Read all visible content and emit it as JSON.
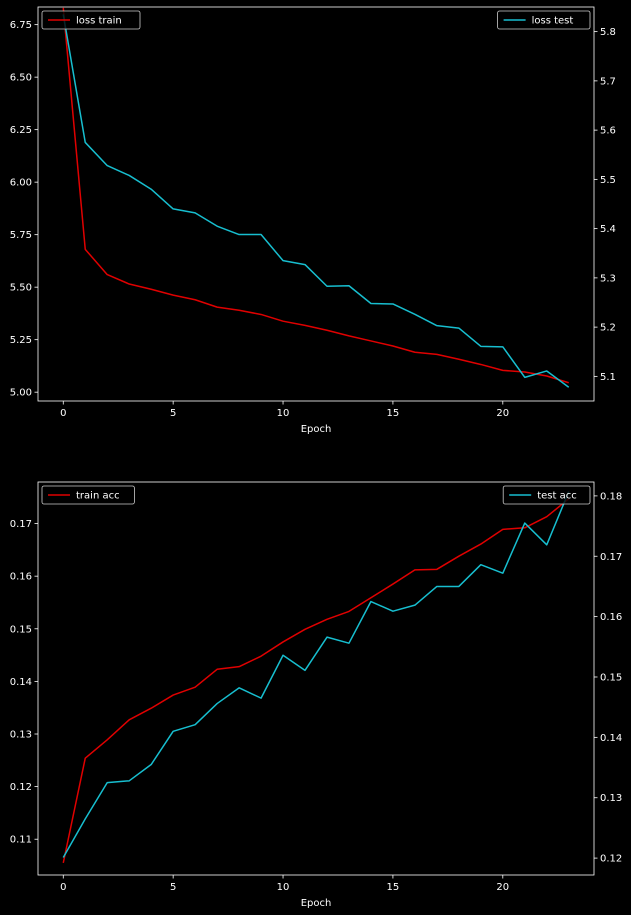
{
  "chart_data": [
    {
      "type": "line",
      "xlabel": "Epoch",
      "x": [
        0,
        1,
        2,
        3,
        4,
        5,
        6,
        7,
        8,
        9,
        10,
        11,
        12,
        13,
        14,
        15,
        16,
        17,
        18,
        19,
        20,
        21,
        22,
        23
      ],
      "xlim": [
        -1.15,
        24.15
      ],
      "xticks": [
        0,
        5,
        10,
        15,
        20
      ],
      "grid": false,
      "left_axis": {
        "ylim": [
          4.958,
          6.834
        ],
        "ticks": [
          5.0,
          5.25,
          5.5,
          5.75,
          6.0,
          6.25,
          6.5,
          6.75
        ],
        "tick_labels": [
          "5.00",
          "5.25",
          "5.50",
          "5.75",
          "6.00",
          "6.25",
          "6.50",
          "6.75"
        ],
        "legend_position": "top-left",
        "series": [
          {
            "name": "loss train",
            "color": "#e00000",
            "values": [
              6.83,
              5.68,
              5.56,
              5.515,
              5.49,
              5.462,
              5.44,
              5.405,
              5.39,
              5.37,
              5.338,
              5.318,
              5.295,
              5.268,
              5.244,
              5.22,
              5.19,
              5.18,
              5.157,
              5.132,
              5.104,
              5.096,
              5.077,
              5.045
            ]
          }
        ]
      },
      "right_axis": {
        "ylim": [
          5.05,
          5.85
        ],
        "ticks": [
          5.1,
          5.2,
          5.3,
          5.4,
          5.5,
          5.6,
          5.7,
          5.8
        ],
        "tick_labels": [
          "5.1",
          "5.2",
          "5.3",
          "5.4",
          "5.5",
          "5.6",
          "5.7",
          "5.8"
        ],
        "legend_position": "top-right",
        "series": [
          {
            "name": "loss test",
            "color": "#17becf",
            "values": [
              5.835,
              5.575,
              5.528,
              5.508,
              5.48,
              5.44,
              5.432,
              5.405,
              5.388,
              5.388,
              5.335,
              5.327,
              5.283,
              5.284,
              5.248,
              5.247,
              5.226,
              5.203,
              5.198,
              5.161,
              5.16,
              5.098,
              5.111,
              5.078
            ]
          }
        ]
      }
    },
    {
      "type": "line",
      "xlabel": "Epoch",
      "x": [
        0,
        1,
        2,
        3,
        4,
        5,
        6,
        7,
        8,
        9,
        10,
        11,
        12,
        13,
        14,
        15,
        16,
        17,
        18,
        19,
        20,
        21,
        22,
        23
      ],
      "xlim": [
        -1.15,
        24.15
      ],
      "xticks": [
        0,
        5,
        10,
        15,
        20
      ],
      "grid": false,
      "left_axis": {
        "ylim": [
          0.1032,
          0.1779
        ],
        "ticks": [
          0.11,
          0.12,
          0.13,
          0.14,
          0.15,
          0.16,
          0.17
        ],
        "tick_labels": [
          "0.11",
          "0.12",
          "0.13",
          "0.14",
          "0.15",
          "0.16",
          "0.17"
        ],
        "legend_position": "top-left",
        "series": [
          {
            "name": "train acc",
            "color": "#e00000",
            "values": [
              0.1055,
              0.1254,
              0.1289,
              0.1327,
              0.1349,
              0.1374,
              0.1389,
              0.1423,
              0.1428,
              0.1448,
              0.1475,
              0.1499,
              0.1518,
              0.1533,
              0.1559,
              0.1585,
              0.1612,
              0.1613,
              0.1638,
              0.1661,
              0.1689,
              0.1692,
              0.1713,
              0.1747
            ]
          }
        ]
      },
      "right_axis": {
        "ylim": [
          0.1172,
          0.1823
        ],
        "ticks": [
          0.12,
          0.13,
          0.14,
          0.15,
          0.16,
          0.17,
          0.18
        ],
        "tick_labels": [
          "0.12",
          "0.13",
          "0.14",
          "0.15",
          "0.16",
          "0.17",
          "0.18"
        ],
        "legend_position": "top-right",
        "series": [
          {
            "name": "test acc",
            "color": "#17becf",
            "values": [
              0.1201,
              0.1265,
              0.1325,
              0.1328,
              0.1355,
              0.141,
              0.1421,
              0.1456,
              0.1482,
              0.1465,
              0.1536,
              0.1511,
              0.1566,
              0.1556,
              0.1625,
              0.1609,
              0.1619,
              0.165,
              0.165,
              0.1686,
              0.1672,
              0.1755,
              0.1719,
              0.1807
            ]
          }
        ]
      }
    }
  ]
}
